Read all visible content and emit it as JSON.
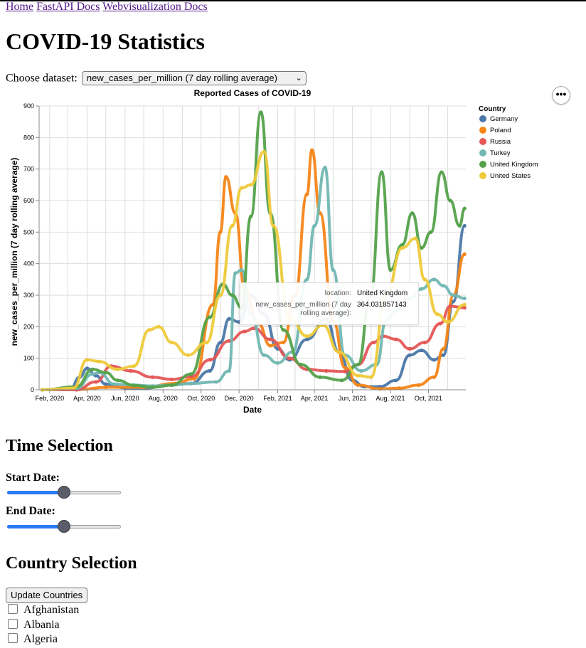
{
  "nav": [
    {
      "label": "Home"
    },
    {
      "label": "FastAPI Docs"
    },
    {
      "label": "Webvisualization Docs"
    }
  ],
  "page_title": "COVID-19 Statistics",
  "dataset": {
    "label": "Choose dataset:",
    "selected": "new_cases_per_million (7 day rolling average)"
  },
  "chart_actions_label": "•••",
  "chart_data": {
    "type": "line",
    "title": "Reported Cases of COVID-19",
    "xlabel": "Date",
    "ylabel": "new_cases_per_million (7 day rolling average)",
    "ylim": [
      0,
      900
    ],
    "yticks": [
      "0",
      "100",
      "200",
      "300",
      "400",
      "500",
      "600",
      "700",
      "800",
      "900"
    ],
    "xlim": [
      "2020-01-15",
      "2021-11-30"
    ],
    "xticks": [
      {
        "date": "2020-02-01",
        "label": "Feb, 2020"
      },
      {
        "date": "2020-04-01",
        "label": "Apr, 2020"
      },
      {
        "date": "2020-06-01",
        "label": "Jun, 2020"
      },
      {
        "date": "2020-08-01",
        "label": "Aug, 2020"
      },
      {
        "date": "2020-10-01",
        "label": "Oct, 2020"
      },
      {
        "date": "2020-12-01",
        "label": "Dec, 2020"
      },
      {
        "date": "2021-02-01",
        "label": "Feb, 2021"
      },
      {
        "date": "2021-04-01",
        "label": "Apr, 2021"
      },
      {
        "date": "2021-06-01",
        "label": "Jun, 2021"
      },
      {
        "date": "2021-08-01",
        "label": "Aug, 2021"
      },
      {
        "date": "2021-10-01",
        "label": "Oct, 2021"
      }
    ],
    "grid": true,
    "legend_title": "Country",
    "legend_position": "right",
    "series": [
      {
        "name": "Germany",
        "color": "#4c78a8",
        "points": [
          [
            "2020-01-20",
            0
          ],
          [
            "2020-03-05",
            1
          ],
          [
            "2020-03-20",
            40
          ],
          [
            "2020-04-01",
            68
          ],
          [
            "2020-04-15",
            45
          ],
          [
            "2020-05-01",
            18
          ],
          [
            "2020-06-01",
            6
          ],
          [
            "2020-07-01",
            5
          ],
          [
            "2020-08-15",
            15
          ],
          [
            "2020-09-15",
            20
          ],
          [
            "2020-10-15",
            60
          ],
          [
            "2020-11-01",
            150
          ],
          [
            "2020-11-15",
            225
          ],
          [
            "2020-12-01",
            215
          ],
          [
            "2020-12-20",
            300
          ],
          [
            "2021-01-10",
            240
          ],
          [
            "2021-02-01",
            130
          ],
          [
            "2021-02-20",
            95
          ],
          [
            "2021-03-20",
            160
          ],
          [
            "2021-04-20",
            225
          ],
          [
            "2021-05-10",
            120
          ],
          [
            "2021-06-01",
            30
          ],
          [
            "2021-06-20",
            10
          ],
          [
            "2021-07-15",
            10
          ],
          [
            "2021-08-10",
            30
          ],
          [
            "2021-09-01",
            110
          ],
          [
            "2021-09-20",
            125
          ],
          [
            "2021-10-10",
            95
          ],
          [
            "2021-10-25",
            110
          ],
          [
            "2021-11-10",
            280
          ],
          [
            "2021-11-28",
            520
          ]
        ]
      },
      {
        "name": "Poland",
        "color": "#f58518",
        "points": [
          [
            "2020-01-20",
            0
          ],
          [
            "2020-03-20",
            1
          ],
          [
            "2020-05-01",
            8
          ],
          [
            "2020-07-01",
            8
          ],
          [
            "2020-08-20",
            20
          ],
          [
            "2020-09-20",
            35
          ],
          [
            "2020-10-20",
            270
          ],
          [
            "2020-11-01",
            500
          ],
          [
            "2020-11-10",
            675
          ],
          [
            "2020-11-25",
            560
          ],
          [
            "2020-12-10",
            320
          ],
          [
            "2021-01-01",
            210
          ],
          [
            "2021-01-20",
            140
          ],
          [
            "2021-02-10",
            150
          ],
          [
            "2021-03-01",
            300
          ],
          [
            "2021-03-20",
            620
          ],
          [
            "2021-03-28",
            760
          ],
          [
            "2021-04-10",
            560
          ],
          [
            "2021-05-01",
            220
          ],
          [
            "2021-05-20",
            70
          ],
          [
            "2021-06-10",
            15
          ],
          [
            "2021-07-15",
            3
          ],
          [
            "2021-08-15",
            5
          ],
          [
            "2021-09-15",
            15
          ],
          [
            "2021-10-10",
            40
          ],
          [
            "2021-10-25",
            130
          ],
          [
            "2021-11-10",
            300
          ],
          [
            "2021-11-28",
            430
          ]
        ]
      },
      {
        "name": "Russia",
        "color": "#e45756",
        "points": [
          [
            "2020-01-20",
            0
          ],
          [
            "2020-03-15",
            0
          ],
          [
            "2020-04-15",
            25
          ],
          [
            "2020-05-10",
            75
          ],
          [
            "2020-06-10",
            60
          ],
          [
            "2020-07-15",
            40
          ],
          [
            "2020-08-15",
            33
          ],
          [
            "2020-09-15",
            42
          ],
          [
            "2020-10-15",
            95
          ],
          [
            "2020-11-15",
            155
          ],
          [
            "2020-12-10",
            185
          ],
          [
            "2020-12-25",
            195
          ],
          [
            "2021-01-20",
            160
          ],
          [
            "2021-02-20",
            100
          ],
          [
            "2021-03-20",
            65
          ],
          [
            "2021-04-20",
            60
          ],
          [
            "2021-05-20",
            58
          ],
          [
            "2021-06-10",
            80
          ],
          [
            "2021-07-05",
            150
          ],
          [
            "2021-07-20",
            170
          ],
          [
            "2021-08-10",
            160
          ],
          [
            "2021-09-01",
            130
          ],
          [
            "2021-09-25",
            150
          ],
          [
            "2021-10-20",
            210
          ],
          [
            "2021-11-05",
            265
          ],
          [
            "2021-11-28",
            260
          ]
        ]
      },
      {
        "name": "Turkey",
        "color": "#72b7b2",
        "points": [
          [
            "2020-01-20",
            0
          ],
          [
            "2020-03-15",
            5
          ],
          [
            "2020-04-10",
            50
          ],
          [
            "2020-04-20",
            55
          ],
          [
            "2020-05-15",
            18
          ],
          [
            "2020-06-15",
            15
          ],
          [
            "2020-07-15",
            12
          ],
          [
            "2020-08-15",
            15
          ],
          [
            "2020-09-15",
            20
          ],
          [
            "2020-10-25",
            25
          ],
          [
            "2020-11-15",
            60
          ],
          [
            "2020-11-25",
            370
          ],
          [
            "2020-12-05",
            380
          ],
          [
            "2020-12-20",
            240
          ],
          [
            "2021-01-10",
            110
          ],
          [
            "2021-02-01",
            85
          ],
          [
            "2021-02-25",
            120
          ],
          [
            "2021-03-20",
            350
          ],
          [
            "2021-04-01",
            520
          ],
          [
            "2021-04-18",
            705
          ],
          [
            "2021-05-01",
            380
          ],
          [
            "2021-05-20",
            110
          ],
          [
            "2021-06-15",
            60
          ],
          [
            "2021-07-10",
            80
          ],
          [
            "2021-07-25",
            220
          ],
          [
            "2021-08-10",
            250
          ],
          [
            "2021-09-01",
            290
          ],
          [
            "2021-09-20",
            320
          ],
          [
            "2021-10-10",
            350
          ],
          [
            "2021-10-25",
            330
          ],
          [
            "2021-11-10",
            300
          ],
          [
            "2021-11-28",
            290
          ]
        ]
      },
      {
        "name": "United Kingdom",
        "color": "#54a24b",
        "points": [
          [
            "2020-01-20",
            0
          ],
          [
            "2020-03-15",
            10
          ],
          [
            "2020-04-10",
            65
          ],
          [
            "2020-05-01",
            55
          ],
          [
            "2020-05-20",
            30
          ],
          [
            "2020-06-15",
            14
          ],
          [
            "2020-07-15",
            8
          ],
          [
            "2020-08-15",
            15
          ],
          [
            "2020-09-15",
            50
          ],
          [
            "2020-10-15",
            230
          ],
          [
            "2020-11-05",
            335
          ],
          [
            "2020-11-20",
            300
          ],
          [
            "2020-12-05",
            260
          ],
          [
            "2020-12-20",
            550
          ],
          [
            "2021-01-05",
            880
          ],
          [
            "2021-01-20",
            560
          ],
          [
            "2021-02-10",
            190
          ],
          [
            "2021-03-10",
            80
          ],
          [
            "2021-04-10",
            40
          ],
          [
            "2021-05-15",
            30
          ],
          [
            "2021-06-10",
            80
          ],
          [
            "2021-06-30",
            300
          ],
          [
            "2021-07-18",
            690
          ],
          [
            "2021-08-01",
            380
          ],
          [
            "2021-08-20",
            460
          ],
          [
            "2021-09-05",
            560
          ],
          [
            "2021-09-20",
            450
          ],
          [
            "2021-10-05",
            500
          ],
          [
            "2021-10-22",
            690
          ],
          [
            "2021-11-05",
            600
          ],
          [
            "2021-11-20",
            520
          ],
          [
            "2021-11-28",
            575
          ]
        ]
      },
      {
        "name": "United States",
        "color": "#eeca3b",
        "points": [
          [
            "2020-01-20",
            0
          ],
          [
            "2020-03-10",
            5
          ],
          [
            "2020-04-01",
            95
          ],
          [
            "2020-04-20",
            90
          ],
          [
            "2020-05-20",
            65
          ],
          [
            "2020-06-15",
            75
          ],
          [
            "2020-07-10",
            190
          ],
          [
            "2020-07-25",
            200
          ],
          [
            "2020-08-15",
            150
          ],
          [
            "2020-09-10",
            110
          ],
          [
            "2020-10-10",
            150
          ],
          [
            "2020-11-01",
            300
          ],
          [
            "2020-11-20",
            520
          ],
          [
            "2020-12-05",
            640
          ],
          [
            "2020-12-20",
            650
          ],
          [
            "2021-01-10",
            755
          ],
          [
            "2021-01-25",
            520
          ],
          [
            "2021-02-20",
            230
          ],
          [
            "2021-03-20",
            170
          ],
          [
            "2021-04-15",
            205
          ],
          [
            "2021-05-10",
            120
          ],
          [
            "2021-06-10",
            45
          ],
          [
            "2021-07-01",
            40
          ],
          [
            "2021-07-25",
            300
          ],
          [
            "2021-08-20",
            450
          ],
          [
            "2021-09-10",
            480
          ],
          [
            "2021-09-25",
            350
          ],
          [
            "2021-10-15",
            240
          ],
          [
            "2021-11-01",
            215
          ],
          [
            "2021-11-28",
            270
          ]
        ]
      }
    ],
    "tooltip": {
      "location_key": "location:",
      "location_value": "United Kingdom",
      "metric_key_line1": "new_cases_per_million (7 day",
      "metric_key_line2": "rolling average):",
      "metric_value": "364.031857143"
    }
  },
  "time_selection": {
    "heading": "Time Selection",
    "start_label": "Start Date:",
    "end_label": "End Date:",
    "start_value": 0.5,
    "end_value": 0.5
  },
  "country_selection": {
    "heading": "Country Selection",
    "update_button": "Update Countries",
    "countries": [
      {
        "label": "Afghanistan"
      },
      {
        "label": "Albania"
      },
      {
        "label": "Algeria"
      }
    ]
  }
}
